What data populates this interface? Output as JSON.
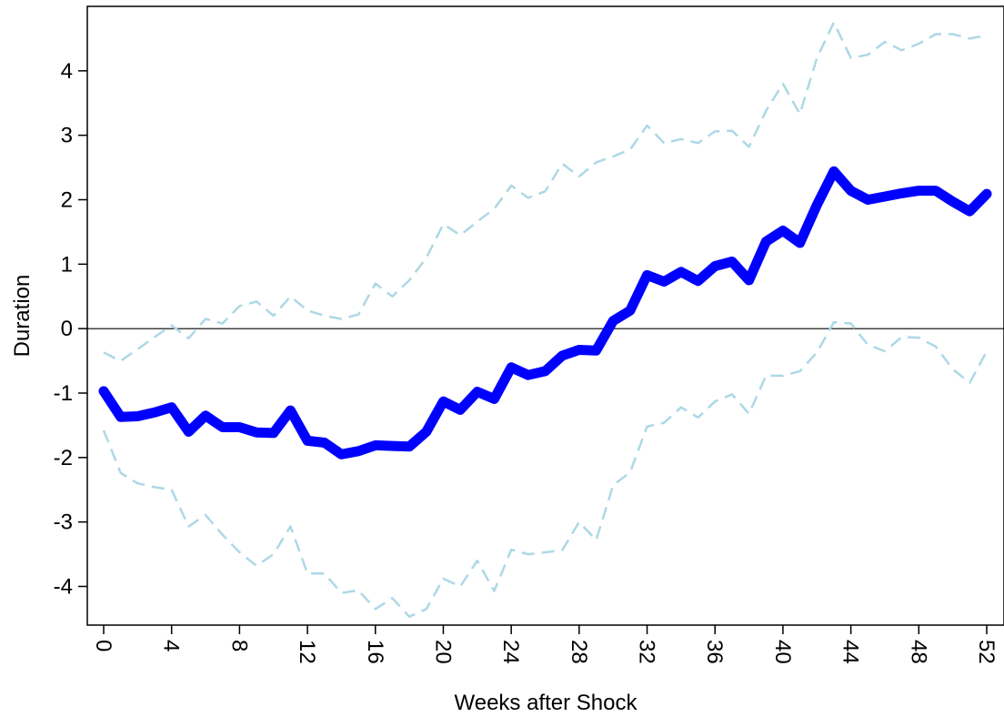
{
  "chart_data": {
    "type": "line",
    "title": "",
    "xlabel": "Weeks after Shock",
    "ylabel": "Duration",
    "xlim": [
      0,
      52
    ],
    "ylim": [
      -4.6,
      5.0
    ],
    "xticks": [
      0,
      4,
      8,
      12,
      16,
      20,
      24,
      28,
      32,
      36,
      40,
      44,
      48,
      52
    ],
    "yticks": [
      -4,
      -3,
      -2,
      -1,
      0,
      1,
      2,
      3,
      4
    ],
    "reference_line_y": 0,
    "grid": false,
    "legend": "none",
    "x": [
      0,
      1,
      2,
      3,
      4,
      5,
      6,
      7,
      8,
      9,
      10,
      11,
      12,
      13,
      14,
      15,
      16,
      17,
      18,
      19,
      20,
      21,
      22,
      23,
      24,
      25,
      26,
      27,
      28,
      29,
      30,
      31,
      32,
      33,
      34,
      35,
      36,
      37,
      38,
      39,
      40,
      41,
      42,
      43,
      44,
      45,
      46,
      47,
      48,
      49,
      50,
      51,
      52
    ],
    "series": [
      {
        "role": "estimate",
        "color": "#0000ff",
        "style": "solid",
        "values": [
          -0.97,
          -1.37,
          -1.36,
          -1.3,
          -1.22,
          -1.6,
          -1.35,
          -1.53,
          -1.53,
          -1.61,
          -1.62,
          -1.27,
          -1.74,
          -1.77,
          -1.95,
          -1.9,
          -1.81,
          -1.82,
          -1.83,
          -1.6,
          -1.13,
          -1.26,
          -0.98,
          -1.09,
          -0.6,
          -0.72,
          -0.66,
          -0.42,
          -0.33,
          -0.34,
          0.12,
          0.28,
          0.83,
          0.73,
          0.88,
          0.74,
          0.97,
          1.04,
          0.75,
          1.35,
          1.52,
          1.33,
          1.92,
          2.44,
          2.14,
          2.0,
          2.05,
          2.1,
          2.14,
          2.14,
          1.97,
          1.82,
          2.09
        ]
      },
      {
        "role": "upper-bound",
        "color": "#add8e6",
        "style": "dashed",
        "values": [
          -0.37,
          -0.5,
          -0.32,
          -0.13,
          0.05,
          -0.15,
          0.15,
          0.08,
          0.35,
          0.42,
          0.2,
          0.5,
          0.28,
          0.2,
          0.15,
          0.22,
          0.7,
          0.5,
          0.75,
          1.1,
          1.62,
          1.45,
          1.66,
          1.86,
          2.22,
          2.03,
          2.13,
          2.56,
          2.36,
          2.58,
          2.67,
          2.78,
          3.15,
          2.88,
          2.94,
          2.88,
          3.06,
          3.07,
          2.82,
          3.38,
          3.8,
          3.33,
          4.2,
          4.75,
          4.2,
          4.25,
          4.45,
          4.32,
          4.42,
          4.57,
          4.57,
          4.5,
          4.55
        ]
      },
      {
        "role": "lower-bound",
        "color": "#add8e6",
        "style": "dashed",
        "values": [
          -1.58,
          -2.24,
          -2.4,
          -2.46,
          -2.5,
          -3.07,
          -2.89,
          -3.2,
          -3.47,
          -3.68,
          -3.5,
          -3.07,
          -3.8,
          -3.8,
          -4.1,
          -4.06,
          -4.35,
          -4.18,
          -4.47,
          -4.35,
          -3.88,
          -4.0,
          -3.6,
          -4.07,
          -3.43,
          -3.5,
          -3.47,
          -3.44,
          -3.0,
          -3.28,
          -2.43,
          -2.23,
          -1.52,
          -1.46,
          -1.22,
          -1.38,
          -1.13,
          -1.02,
          -1.32,
          -0.73,
          -0.73,
          -0.66,
          -0.37,
          0.1,
          0.08,
          -0.25,
          -0.35,
          -0.13,
          -0.14,
          -0.28,
          -0.63,
          -0.84,
          -0.35
        ]
      }
    ]
  }
}
